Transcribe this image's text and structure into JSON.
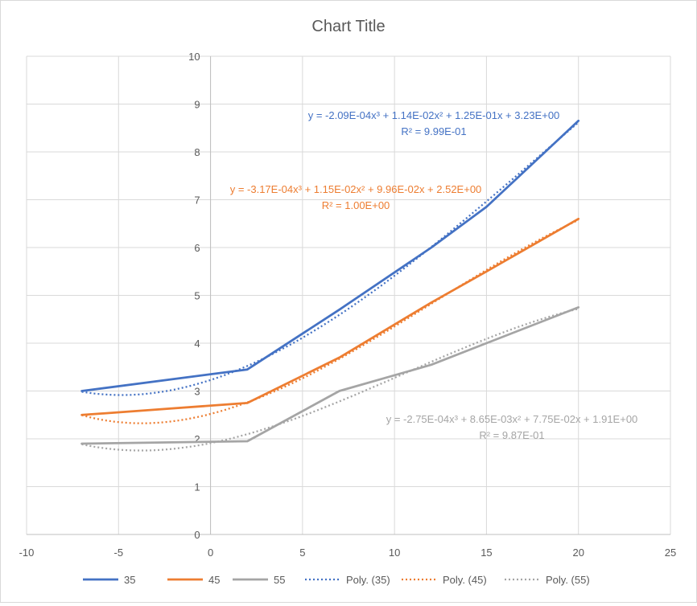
{
  "chart_data": {
    "type": "line",
    "title": "Chart Title",
    "xlim": [
      -10,
      25
    ],
    "ylim": [
      0,
      10
    ],
    "x_ticks": [
      "-10",
      "-5",
      "0",
      "5",
      "10",
      "15",
      "20",
      "25"
    ],
    "y_ticks": [
      "0",
      "1",
      "2",
      "3",
      "4",
      "5",
      "6",
      "7",
      "8",
      "9",
      "10"
    ],
    "grid": true,
    "legend_position": "bottom",
    "series": [
      {
        "name": "35",
        "color": "#4472C4",
        "points": [
          [
            -7,
            3.0
          ],
          [
            2,
            3.45
          ],
          [
            7,
            4.7
          ],
          [
            12,
            6.0
          ],
          [
            15,
            6.85
          ],
          [
            20,
            8.65
          ]
        ]
      },
      {
        "name": "45",
        "color": "#ED7D31",
        "points": [
          [
            -7,
            2.5
          ],
          [
            2,
            2.75
          ],
          [
            7,
            3.7
          ],
          [
            12,
            4.85
          ],
          [
            15,
            5.5
          ],
          [
            20,
            6.6
          ]
        ]
      },
      {
        "name": "55",
        "color": "#A5A5A5",
        "points": [
          [
            -7,
            1.9
          ],
          [
            2,
            1.95
          ],
          [
            7,
            3.0
          ],
          [
            12,
            3.55
          ],
          [
            15,
            4.0
          ],
          [
            20,
            4.75
          ]
        ]
      }
    ],
    "trendlines": [
      {
        "name": "Poly. (35)",
        "color": "#4472C4",
        "coefficients": [
          -0.000209,
          0.0114,
          0.125,
          3.23
        ],
        "x_range": [
          -7,
          20
        ],
        "equation": "y = -2.09E-04x³ + 1.14E-02x² + 1.25E-01x + 3.23E+00",
        "r2": "R² = 9.99E-01"
      },
      {
        "name": "Poly. (45)",
        "color": "#ED7D31",
        "coefficients": [
          -0.000317,
          0.0115,
          0.0996,
          2.52
        ],
        "x_range": [
          -7,
          20
        ],
        "equation": "y = -3.17E-04x³ + 1.15E-02x² + 9.96E-02x + 2.52E+00",
        "r2": "R² = 1.00E+00"
      },
      {
        "name": "Poly. (55)",
        "color": "#A5A5A5",
        "coefficients": [
          -0.000275,
          0.00865,
          0.0775,
          1.91
        ],
        "x_range": [
          -7,
          20
        ],
        "equation": "y = -2.75E-04x³ + 8.65E-03x² + 7.75E-02x + 1.91E+00",
        "r2": "R² = 9.87E-01"
      }
    ]
  }
}
